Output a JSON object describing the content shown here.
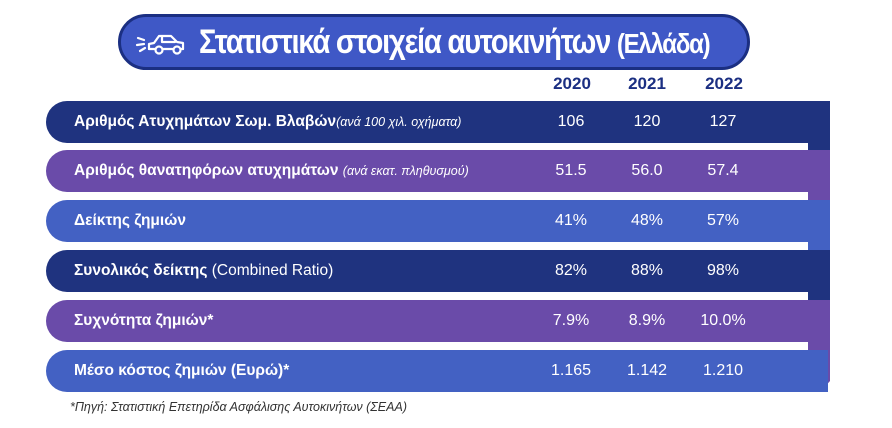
{
  "header": {
    "title": "Στατιστικά στοιχεία αυτοκινήτων",
    "title_suffix": "(Ελλάδα)",
    "icon": "car-crash-icon"
  },
  "colors": {
    "navy": "#1f337f",
    "purple": "#6a4ba9",
    "blue": "#4361c3",
    "title_bg": "#3f58c6",
    "year_text": "#1b2f82"
  },
  "chart_data": {
    "type": "table",
    "columns": [
      "2020",
      "2021",
      "2022"
    ],
    "rows": [
      {
        "label": "Αριθμός Ατυχημάτων Σωμ. Βλαβών",
        "note": "(ανά 100 χιλ. οχήματα)",
        "values": [
          "106",
          "120",
          "127"
        ],
        "color": "navy"
      },
      {
        "label": "Αριθμός θανατηφόρων ατυχημάτων",
        "note": "(ανά εκατ. πληθυσμού)",
        "values": [
          "51.5",
          "56.0",
          "57.4"
        ],
        "color": "purple"
      },
      {
        "label": "Δείκτης ζημιών",
        "note": "",
        "values": [
          "41%",
          "48%",
          "57%"
        ],
        "color": "blue"
      },
      {
        "label": "Συνολικός δείκτης",
        "note": "(Combined Ratio)",
        "values": [
          "82%",
          "88%",
          "98%"
        ],
        "color": "navy"
      },
      {
        "label": "Συχνότητα ζημιών*",
        "note": "",
        "values": [
          "7.9%",
          "8.9%",
          "10.0%"
        ],
        "color": "purple"
      },
      {
        "label": "Μέσο κόστος ζημιών (Ευρώ)*",
        "note": "",
        "values": [
          "1.165",
          "1.142",
          "1.210"
        ],
        "color": "blue"
      }
    ]
  },
  "footnote": "*Πηγή: Στατιστική Επετηρίδα Ασφάλισης Αυτοκινήτων (ΣΕΑΑ)"
}
